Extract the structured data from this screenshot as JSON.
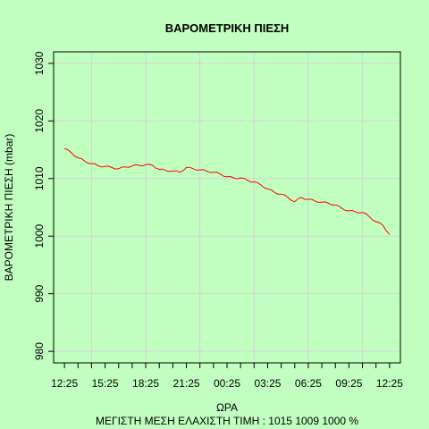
{
  "chart_data": {
    "type": "line",
    "title": "ΒΑΡΟΜΕΤΡΙΚΗ ΠΙΕΣΗ",
    "xlabel": "ΩΡΑ",
    "ylabel": "ΒΑΡΟΜΕΤΡΙΚΗ ΠΙΕΣΗ (mbar)",
    "footer": "ΜΕΓΙΣΤΗ ΜΕΣΗ ΕΛΑΧΙΣΤΗ ΤΙΜΗ :  1015  1009  1000   %",
    "ylim": [
      978,
      1032
    ],
    "yticks": [
      980,
      990,
      1000,
      1010,
      1020,
      1030
    ],
    "xlim": [
      -0.8,
      24.8
    ],
    "x_tick_labels": [
      "12:25",
      "15:25",
      "18:25",
      "21:25",
      "00:25",
      "03:25",
      "06:25",
      "09:25",
      "12:25"
    ],
    "x_tick_positions": [
      0,
      3,
      6,
      9,
      12,
      15,
      18,
      21,
      24
    ],
    "grid": true,
    "line_color": "#ff0000",
    "series": [
      {
        "x": [
          0,
          0.5,
          1,
          1.5,
          2,
          2.5,
          3,
          3.5,
          4,
          4.5,
          5,
          5.5,
          6,
          6.5,
          7,
          7.5,
          8,
          8.5,
          9,
          9.5,
          10,
          10.5,
          11,
          11.5,
          12,
          12.5,
          13,
          13.5,
          14,
          14.5,
          15,
          15.5,
          16,
          16.5,
          17,
          17.5,
          18,
          18.5,
          19,
          19.5,
          20,
          20.5,
          21,
          21.5,
          22,
          22.5,
          23,
          23.5,
          24
        ],
        "y": [
          1015.2,
          1014.5,
          1013.6,
          1013.0,
          1012.6,
          1012.2,
          1012.1,
          1011.9,
          1011.7,
          1012.0,
          1012.2,
          1012.3,
          1012.4,
          1012.3,
          1011.6,
          1011.4,
          1011.3,
          1011.1,
          1011.9,
          1011.7,
          1011.5,
          1011.3,
          1011.1,
          1010.8,
          1010.3,
          1010.1,
          1010.1,
          1009.7,
          1009.4,
          1008.9,
          1008.2,
          1007.6,
          1007.3,
          1006.7,
          1006.0,
          1006.7,
          1006.4,
          1006.1,
          1005.9,
          1005.7,
          1005.4,
          1004.8,
          1004.4,
          1004.2,
          1004.1,
          1003.4,
          1002.5,
          1001.9,
          1000.3
        ]
      }
    ]
  }
}
